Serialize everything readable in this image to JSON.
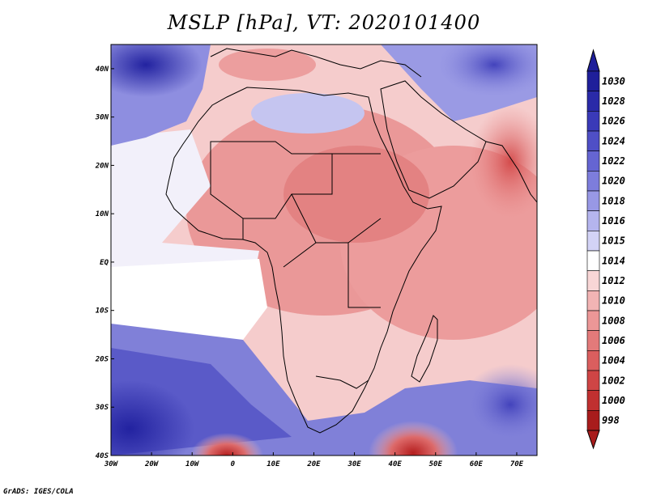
{
  "title": "MSLP [hPa], VT: 2020101400",
  "credit": "GrADS: IGES/COLA",
  "map": {
    "lon_labels": [
      "30W",
      "20W",
      "10W",
      "0",
      "10E",
      "20E",
      "30E",
      "40E",
      "50E",
      "60E",
      "70E"
    ],
    "lat_labels": [
      "40N",
      "30N",
      "20N",
      "10N",
      "EQ",
      "10S",
      "20S",
      "30S",
      "40S"
    ],
    "lon_range": [
      -30,
      75
    ],
    "lat_range": [
      -40,
      45
    ]
  },
  "colorbar": {
    "levels": [
      "1030",
      "1028",
      "1026",
      "1024",
      "1022",
      "1020",
      "1018",
      "1016",
      "1015",
      "1014",
      "1012",
      "1010",
      "1008",
      "1006",
      "1004",
      "1002",
      "1000",
      "998"
    ],
    "colors": [
      "#1f1f9a",
      "#2a2aa8",
      "#3a3ab8",
      "#4f4fc6",
      "#6565d2",
      "#7d7ddc",
      "#9898e5",
      "#b5b5ee",
      "#d3d3f6",
      "#ffffff",
      "#f8d6d6",
      "#f2b4b4",
      "#ec9797",
      "#e37a7a",
      "#da5e5e",
      "#cf4545",
      "#c03030",
      "#a81c1c"
    ],
    "unit": "hPa"
  }
}
